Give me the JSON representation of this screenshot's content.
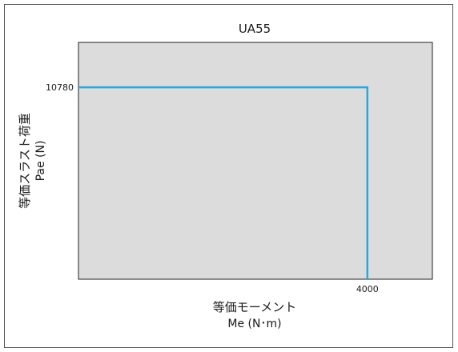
{
  "chart_data": {
    "type": "line",
    "title": "UA55",
    "xlabel_line1": "等価モーメント",
    "xlabel_line2": "Me (N･m)",
    "ylabel_line1": "等価スラスト荷重",
    "ylabel_line2": "Pae (N)",
    "xlim": [
      0,
      4900
    ],
    "ylim": [
      0,
      13300
    ],
    "x_tick_labels": [
      {
        "value": 4000,
        "label": "4000"
      }
    ],
    "y_tick_labels": [
      {
        "value": 10780,
        "label": "10780"
      }
    ],
    "series": [
      {
        "points": [
          {
            "x": 0,
            "y": 10780
          },
          {
            "x": 4000,
            "y": 10780
          },
          {
            "x": 4000,
            "y": 0
          }
        ]
      }
    ],
    "grid": false,
    "legend": "none",
    "colors": {
      "plot_background": "#dcdcdc",
      "line": "#29a9e0",
      "axes": "#222222"
    }
  }
}
